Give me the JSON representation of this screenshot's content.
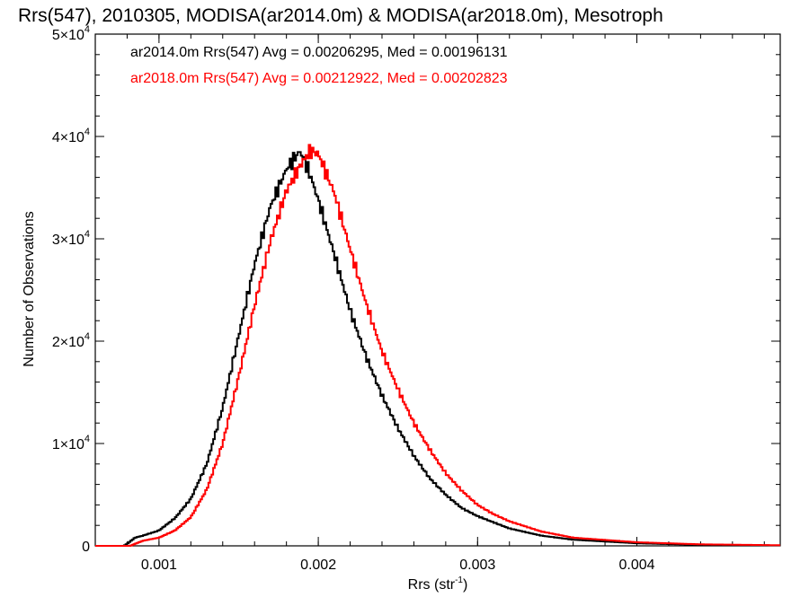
{
  "chart_data": {
    "type": "line",
    "title": "Rrs(547), 2010305, MODISA(ar2014.0m) & MODISA(ar2018.0m), Mesotroph",
    "xlabel": "Rrs (str",
    "xlabel_sup": "-1",
    "xlabel_close": ")",
    "ylabel": "Number of Observations",
    "xlim": [
      0.0006,
      0.0049
    ],
    "ylim": [
      0,
      50000
    ],
    "xticks": [
      {
        "value": 0.001,
        "label": "0.001"
      },
      {
        "value": 0.002,
        "label": "0.002"
      },
      {
        "value": 0.003,
        "label": "0.003"
      },
      {
        "value": 0.004,
        "label": "0.004"
      }
    ],
    "yticks": [
      {
        "value": 0,
        "base": "0",
        "exp": ""
      },
      {
        "value": 10000,
        "base": "1×10",
        "exp": "4"
      },
      {
        "value": 20000,
        "base": "2×10",
        "exp": "4"
      },
      {
        "value": 30000,
        "base": "3×10",
        "exp": "4"
      },
      {
        "value": 40000,
        "base": "4×10",
        "exp": "4"
      },
      {
        "value": 50000,
        "base": "5×10",
        "exp": "4"
      }
    ],
    "legend_position": "top-left",
    "series": [
      {
        "label": "ar2014.0m Rrs(547) Avg = 0.00206295, Med = 0.00196131",
        "color": "#000000",
        "points": [
          [
            0.0006,
            0
          ],
          [
            0.00078,
            0
          ],
          [
            0.0008,
            200
          ],
          [
            0.00085,
            800
          ],
          [
            0.0009,
            1000
          ],
          [
            0.001,
            1500
          ],
          [
            0.0011,
            2700
          ],
          [
            0.0012,
            4600
          ],
          [
            0.0013,
            8000
          ],
          [
            0.0014,
            13500
          ],
          [
            0.0015,
            20500
          ],
          [
            0.0016,
            27500
          ],
          [
            0.0017,
            33200
          ],
          [
            0.0018,
            36800
          ],
          [
            0.00188,
            38500
          ],
          [
            0.0019,
            38200
          ],
          [
            0.00195,
            36200
          ],
          [
            0.002,
            33800
          ],
          [
            0.0021,
            28500
          ],
          [
            0.0022,
            23000
          ],
          [
            0.0023,
            18500
          ],
          [
            0.0024,
            14700
          ],
          [
            0.0025,
            11500
          ],
          [
            0.0026,
            8800
          ],
          [
            0.0027,
            6600
          ],
          [
            0.0028,
            5000
          ],
          [
            0.0029,
            3700
          ],
          [
            0.003,
            2900
          ],
          [
            0.0032,
            1700
          ],
          [
            0.0034,
            1000
          ],
          [
            0.0036,
            600
          ],
          [
            0.004,
            250
          ],
          [
            0.0044,
            100
          ],
          [
            0.0049,
            40
          ]
        ]
      },
      {
        "label": "ar2018.0m Rrs(547) Avg = 0.00212922, Med = 0.00202823",
        "color": "#ff0000",
        "points": [
          [
            0.0006,
            0
          ],
          [
            0.00082,
            0
          ],
          [
            0.00085,
            200
          ],
          [
            0.0009,
            500
          ],
          [
            0.001,
            800
          ],
          [
            0.0011,
            1500
          ],
          [
            0.0012,
            2800
          ],
          [
            0.0013,
            5500
          ],
          [
            0.0014,
            10000
          ],
          [
            0.0015,
            16500
          ],
          [
            0.0016,
            23500
          ],
          [
            0.0017,
            29800
          ],
          [
            0.0018,
            34700
          ],
          [
            0.0019,
            37500
          ],
          [
            0.00195,
            38600
          ],
          [
            0.002,
            38300
          ],
          [
            0.0021,
            34500
          ],
          [
            0.0022,
            29000
          ],
          [
            0.0023,
            23700
          ],
          [
            0.0024,
            19000
          ],
          [
            0.0025,
            15300
          ],
          [
            0.0026,
            12000
          ],
          [
            0.0027,
            9400
          ],
          [
            0.0028,
            7100
          ],
          [
            0.0029,
            5400
          ],
          [
            0.003,
            4000
          ],
          [
            0.0031,
            3100
          ],
          [
            0.0032,
            2400
          ],
          [
            0.0034,
            1400
          ],
          [
            0.0036,
            800
          ],
          [
            0.004,
            350
          ],
          [
            0.0044,
            150
          ],
          [
            0.0049,
            60
          ]
        ]
      }
    ]
  }
}
